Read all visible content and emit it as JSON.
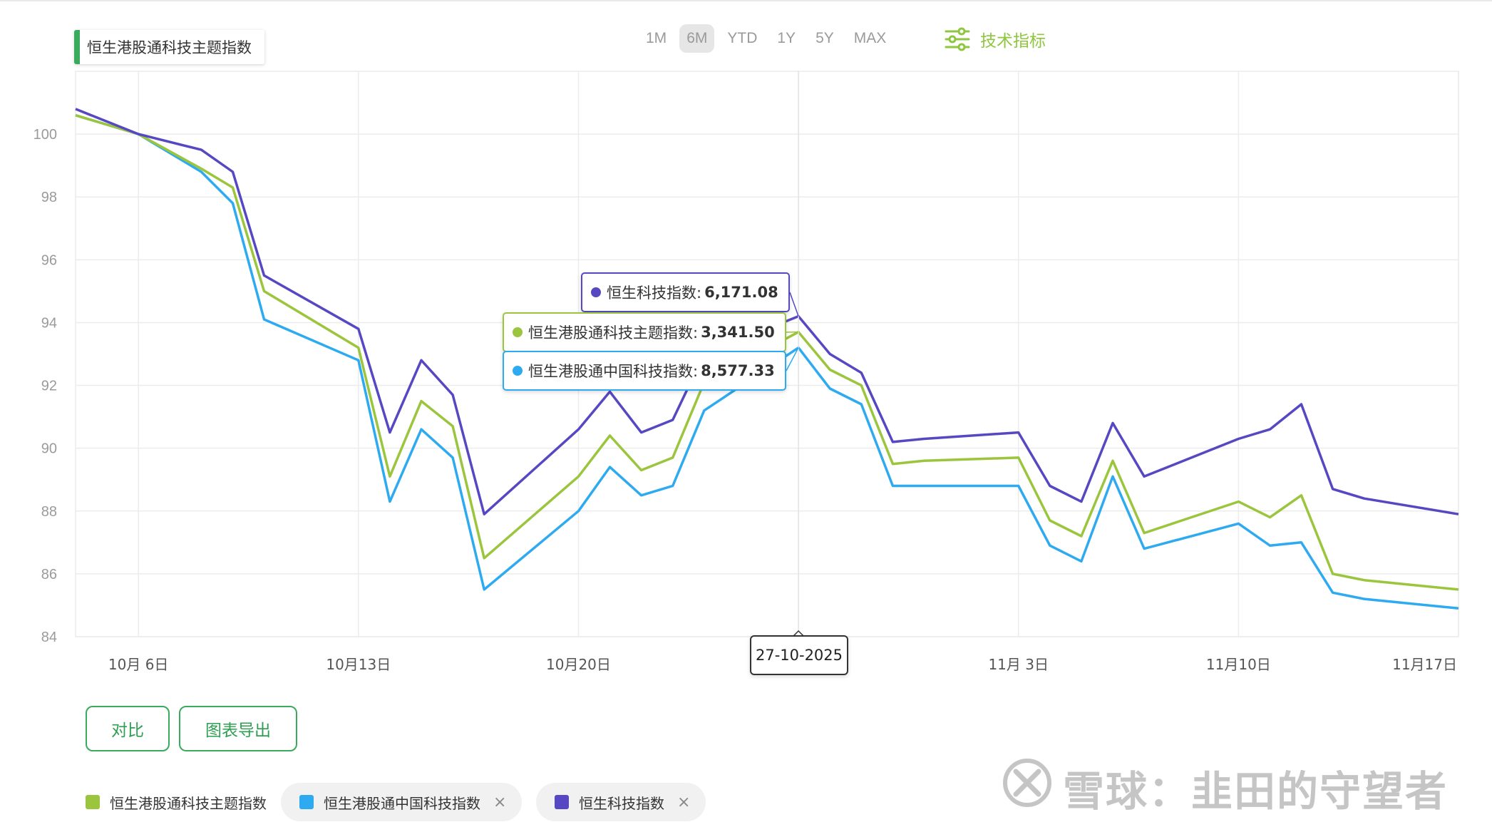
{
  "ranges": {
    "items": [
      "1M",
      "6M",
      "YTD",
      "1Y",
      "5Y",
      "MAX"
    ],
    "active": "6M"
  },
  "tech_label": "技术指标",
  "series_title": "恒生港股通科技主题指数",
  "colors": {
    "green": "#9bc53d",
    "blue": "#2eaaf0",
    "purple": "#5648c2",
    "accent": "#3aaa5c",
    "tech": "#8ec63f"
  },
  "tooltips": [
    {
      "label": "恒生科技指数:",
      "value": "6,171.08",
      "color": "#5648c2"
    },
    {
      "label": "恒生港股通科技主题指数:",
      "value": "3,341.50",
      "color": "#9bc53d"
    },
    {
      "label": "恒生港股通中国科技指数:",
      "value": "8,577.33",
      "color": "#2eaaf0"
    }
  ],
  "date_tooltip": "27-10-2025",
  "buttons": {
    "compare": "对比",
    "export": "图表导出"
  },
  "legend": [
    {
      "label": "恒生港股通科技主题指数",
      "color": "#9bc53d",
      "removable": false
    },
    {
      "label": "恒生港股通中国科技指数",
      "color": "#2eaaf0",
      "removable": true
    },
    {
      "label": "恒生科技指数",
      "color": "#5648c2",
      "removable": true
    }
  ],
  "legend_close": "×",
  "watermark": "雪球：韭田的守望者",
  "chart_data": {
    "type": "line",
    "x_ticks": [
      "10月 6日",
      "10月13日",
      "10月20日",
      "11月 3日",
      "11月10日",
      "11月17日"
    ],
    "x_tick_days": [
      0,
      7,
      14,
      28,
      35,
      42
    ],
    "xlim": [
      -2,
      42
    ],
    "ylim": [
      84,
      102
    ],
    "y_ticks": [
      84,
      86,
      88,
      90,
      92,
      94,
      96,
      98,
      100
    ],
    "grid": true,
    "x_days": [
      -2,
      0,
      2,
      3,
      4,
      7,
      8,
      9,
      10,
      11,
      14,
      15,
      16,
      17,
      18,
      21,
      22,
      23,
      24,
      25,
      28,
      29,
      30,
      31,
      32,
      35,
      36,
      37,
      38,
      39,
      42
    ],
    "series": [
      {
        "name": "恒生科技指数",
        "color": "#5648c2",
        "values": [
          100.8,
          100.0,
          99.5,
          98.8,
          95.5,
          93.8,
          90.5,
          92.8,
          91.7,
          87.9,
          90.6,
          91.8,
          90.5,
          90.9,
          93.0,
          94.2,
          93.0,
          92.4,
          90.2,
          90.3,
          90.5,
          88.8,
          88.3,
          90.8,
          89.1,
          90.3,
          90.6,
          91.4,
          88.7,
          88.4,
          87.9
        ]
      },
      {
        "name": "恒生港股通科技主题指数",
        "color": "#9bc53d",
        "values": [
          100.6,
          100.0,
          98.9,
          98.3,
          95.0,
          93.2,
          89.1,
          91.5,
          90.7,
          86.5,
          89.1,
          90.4,
          89.3,
          89.7,
          92.1,
          93.7,
          92.5,
          92.0,
          89.5,
          89.6,
          89.7,
          87.7,
          87.2,
          89.6,
          87.3,
          88.3,
          87.8,
          88.5,
          86.0,
          85.8,
          85.5
        ]
      },
      {
        "name": "恒生港股通中国科技指数",
        "color": "#2eaaf0",
        "values": [
          100.6,
          100.0,
          98.8,
          97.8,
          94.1,
          92.8,
          88.3,
          90.6,
          89.7,
          85.5,
          88.0,
          89.4,
          88.5,
          88.8,
          91.2,
          93.2,
          91.9,
          91.4,
          88.8,
          88.8,
          88.8,
          86.9,
          86.4,
          89.1,
          86.8,
          87.6,
          86.9,
          87.0,
          85.4,
          85.2,
          84.9
        ]
      }
    ]
  }
}
